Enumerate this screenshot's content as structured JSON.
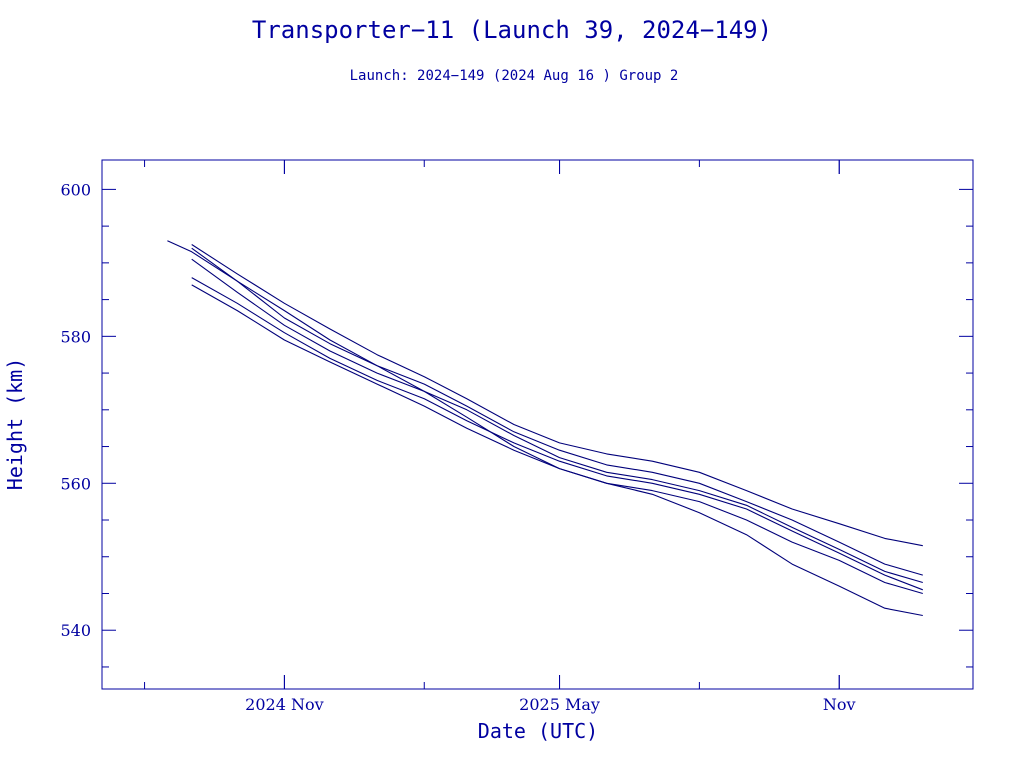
{
  "chart_data": {
    "type": "line",
    "title": "Transporter−11 (Launch 39, 2024−149)",
    "subtitle": "Launch: 2024−149  (2024 Aug 16 )  Group 2",
    "xlabel": "Date (UTC)",
    "ylabel": "Height (km)",
    "x_ticks": [
      "2024 Nov",
      "2025 May",
      "Nov"
    ],
    "x_tick_dates": [
      "2024-11-01",
      "2025-05-01",
      "2025-11-01"
    ],
    "xlim": [
      "2024-07-04",
      "2026-01-28"
    ],
    "ylim": [
      532,
      604
    ],
    "y_ticks": [
      540,
      560,
      580,
      600
    ],
    "grid": false,
    "series": [
      {
        "x": [
          "2024-08-16",
          "2024-09-01",
          "2024-10-01",
          "2024-11-01",
          "2024-12-01",
          "2025-01-01",
          "2025-02-01",
          "2025-03-01",
          "2025-04-01",
          "2025-05-01",
          "2025-06-01",
          "2025-07-01",
          "2025-08-01",
          "2025-09-01",
          "2025-10-01",
          "2025-11-01",
          "2025-12-01",
          "2025-12-26"
        ],
        "values": [
          593.0,
          591.5,
          587.5,
          583.5,
          579.5,
          576.0,
          572.5,
          569.0,
          565.0,
          562.0,
          560.0,
          558.5,
          556.0,
          553.0,
          549.0,
          546.0,
          543.0,
          542.0
        ]
      },
      {
        "x": [
          "2024-09-01",
          "2024-10-01",
          "2024-11-01",
          "2024-12-01",
          "2025-01-01",
          "2025-02-01",
          "2025-03-01",
          "2025-04-01",
          "2025-05-01",
          "2025-06-01",
          "2025-07-01",
          "2025-08-01",
          "2025-09-01",
          "2025-10-01",
          "2025-11-01",
          "2025-12-01",
          "2025-12-26"
        ],
        "values": [
          592.5,
          588.5,
          584.5,
          581.0,
          577.5,
          574.5,
          571.5,
          568.0,
          565.5,
          564.0,
          563.0,
          561.5,
          559.0,
          556.5,
          554.5,
          552.5,
          551.5
        ]
      },
      {
        "x": [
          "2024-09-01",
          "2024-10-01",
          "2024-11-01",
          "2024-12-01",
          "2025-01-01",
          "2025-02-01",
          "2025-03-01",
          "2025-04-01",
          "2025-05-01",
          "2025-06-01",
          "2025-07-01",
          "2025-08-01",
          "2025-09-01",
          "2025-10-01",
          "2025-11-01",
          "2025-12-01",
          "2025-12-26"
        ],
        "values": [
          592.0,
          587.5,
          582.5,
          579.0,
          576.0,
          573.5,
          570.5,
          567.0,
          564.5,
          562.5,
          561.5,
          560.0,
          557.5,
          555.0,
          552.0,
          549.0,
          547.5
        ]
      },
      {
        "x": [
          "2024-09-01",
          "2024-10-01",
          "2024-11-01",
          "2024-12-01",
          "2025-01-01",
          "2025-02-01",
          "2025-03-01",
          "2025-04-01",
          "2025-05-01",
          "2025-06-01",
          "2025-07-01",
          "2025-08-01",
          "2025-09-01",
          "2025-10-01",
          "2025-11-01",
          "2025-12-01",
          "2025-12-26"
        ],
        "values": [
          590.5,
          586.0,
          581.5,
          578.0,
          575.0,
          572.5,
          570.0,
          566.5,
          563.5,
          561.5,
          560.5,
          559.0,
          557.0,
          554.0,
          551.0,
          548.0,
          546.5
        ]
      },
      {
        "x": [
          "2024-09-01",
          "2024-10-01",
          "2024-11-01",
          "2024-12-01",
          "2025-01-01",
          "2025-02-01",
          "2025-03-01",
          "2025-04-01",
          "2025-05-01",
          "2025-06-01",
          "2025-07-01",
          "2025-08-01",
          "2025-09-01",
          "2025-10-01",
          "2025-11-01",
          "2025-12-01",
          "2025-12-26"
        ],
        "values": [
          588.0,
          584.5,
          580.5,
          577.0,
          574.0,
          571.5,
          568.5,
          565.5,
          563.0,
          561.0,
          560.0,
          558.5,
          556.5,
          553.5,
          550.5,
          547.5,
          545.5
        ]
      },
      {
        "x": [
          "2024-09-01",
          "2024-10-01",
          "2024-11-01",
          "2024-12-01",
          "2025-01-01",
          "2025-02-01",
          "2025-03-01",
          "2025-04-01",
          "2025-05-01",
          "2025-06-01",
          "2025-07-01",
          "2025-08-01",
          "2025-09-01",
          "2025-10-01",
          "2025-11-01",
          "2025-12-01",
          "2025-12-26"
        ],
        "values": [
          587.0,
          583.5,
          579.5,
          576.5,
          573.5,
          570.5,
          567.5,
          564.5,
          562.0,
          560.0,
          559.0,
          557.5,
          555.0,
          552.0,
          549.5,
          546.5,
          545.0
        ]
      }
    ]
  }
}
